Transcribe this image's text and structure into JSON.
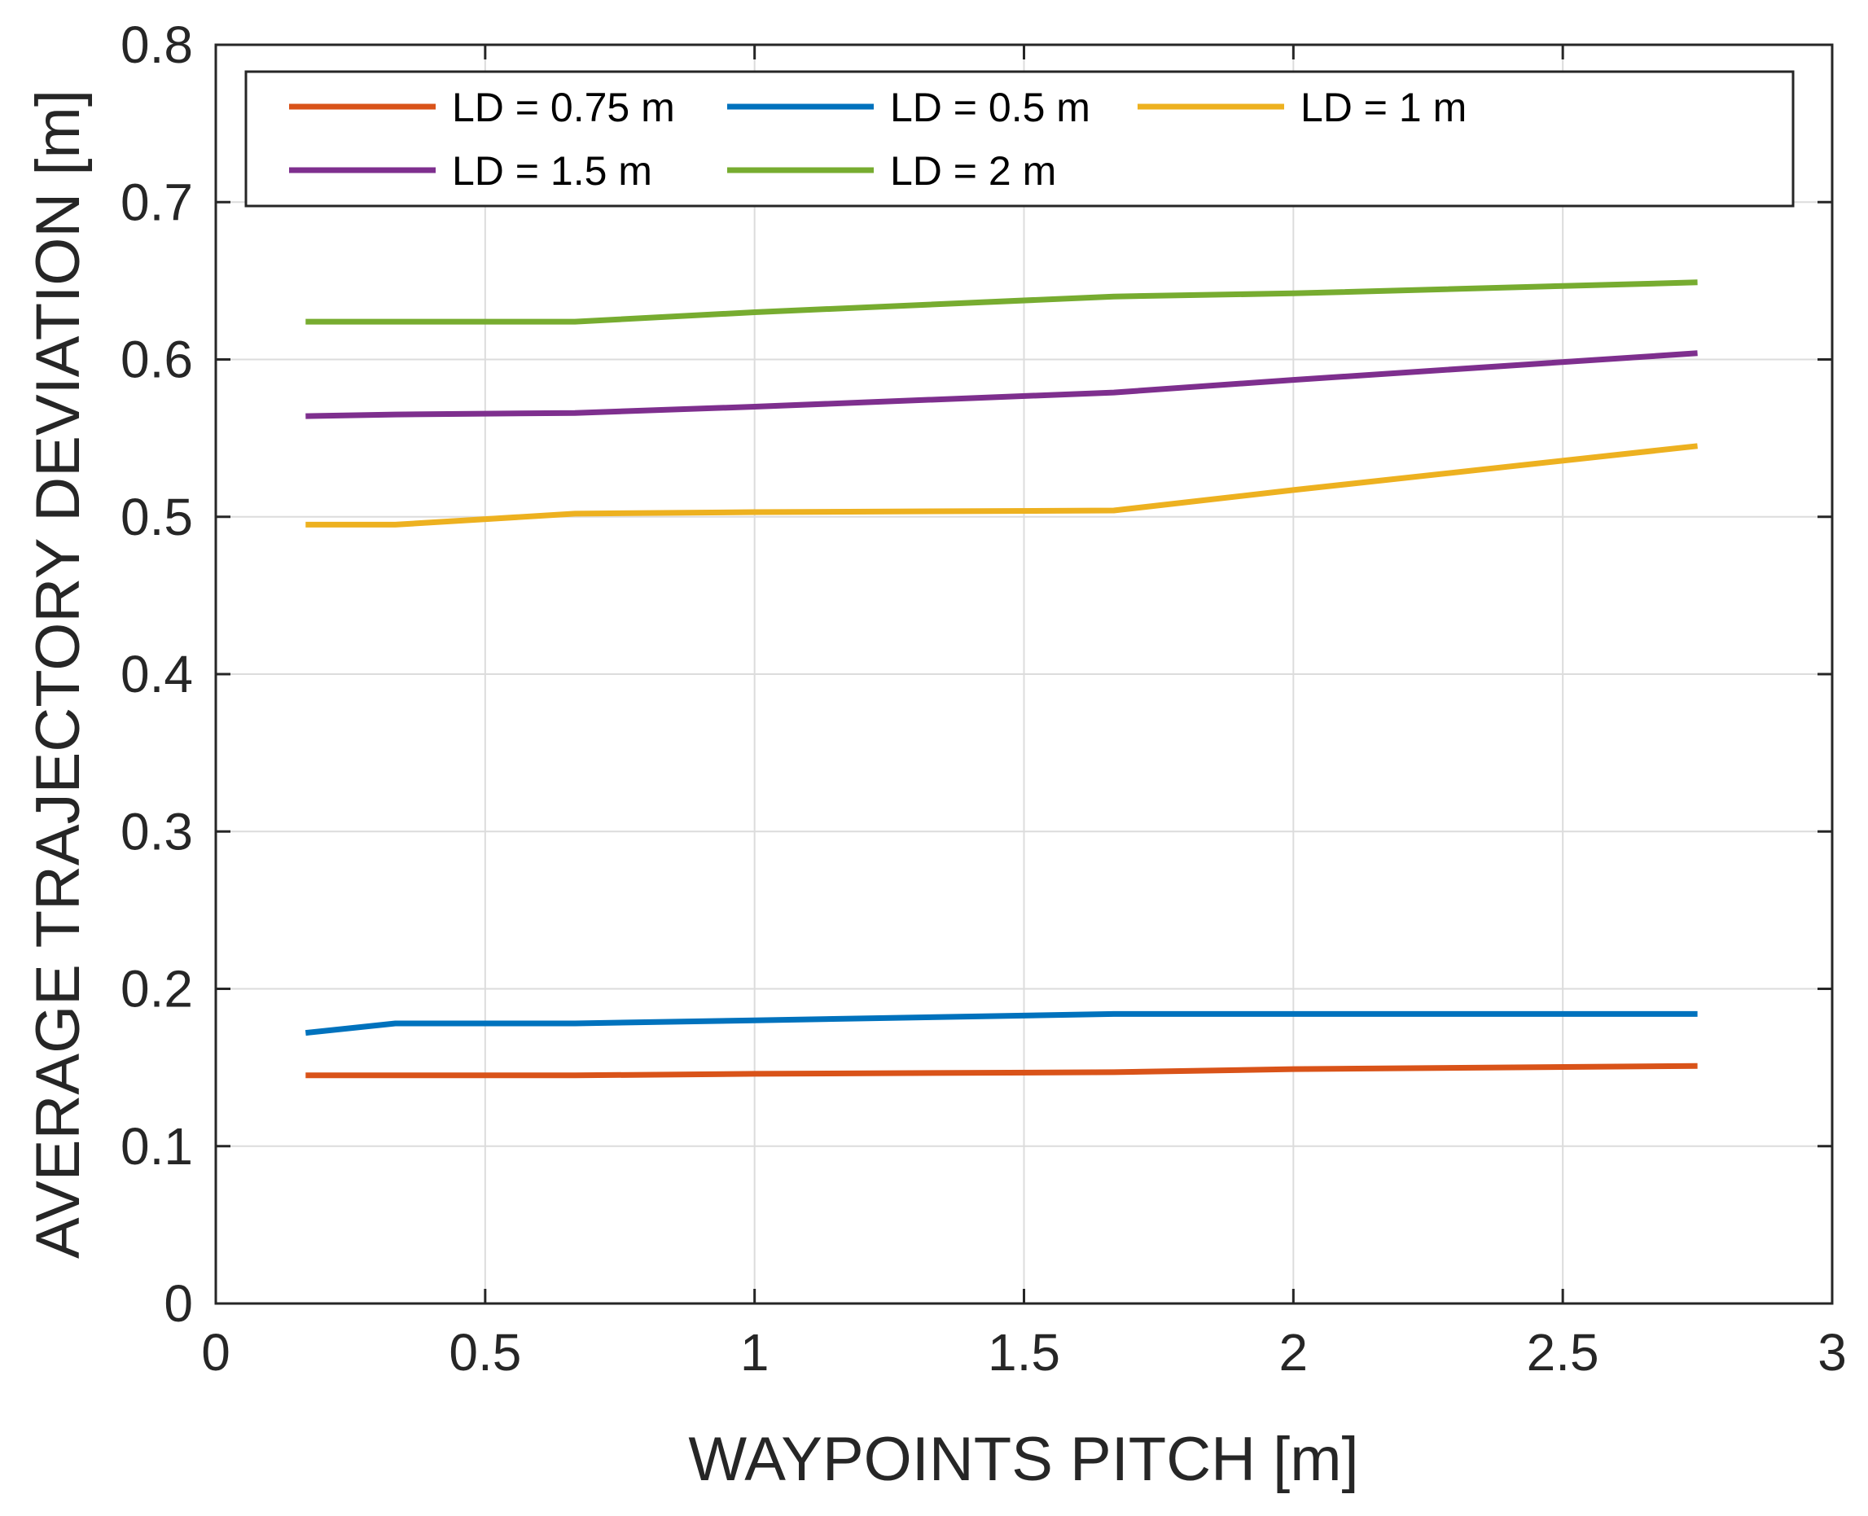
{
  "chart_data": {
    "type": "line",
    "title": "",
    "xlabel": "WAYPOINTS PITCH [m]",
    "ylabel": "AVERAGE TRAJECTORY DEVIATION [m]",
    "xlim": [
      0,
      3
    ],
    "ylim": [
      0,
      0.8
    ],
    "xticks": [
      0,
      0.5,
      1,
      1.5,
      2,
      2.5,
      3
    ],
    "yticks": [
      0,
      0.1,
      0.2,
      0.3,
      0.4,
      0.5,
      0.6,
      0.7,
      0.8
    ],
    "xtick_labels": [
      "0",
      "0.5",
      "1",
      "1.5",
      "2",
      "2.5",
      "3"
    ],
    "ytick_labels": [
      "0",
      "0.1",
      "0.2",
      "0.3",
      "0.4",
      "0.5",
      "0.6",
      "0.7",
      "0.8"
    ],
    "grid": true,
    "legend_position": "top",
    "x": [
      0.1667,
      0.3333,
      0.6667,
      1.0,
      1.6667,
      2.0,
      2.75
    ],
    "series": [
      {
        "name": "LD = 0.75 m",
        "color": "#D95319",
        "values": [
          0.145,
          0.145,
          0.145,
          0.146,
          0.147,
          0.149,
          0.151
        ]
      },
      {
        "name": "LD = 0.5 m",
        "color": "#0072BD",
        "values": [
          0.172,
          0.178,
          0.178,
          0.18,
          0.184,
          0.184,
          0.184
        ]
      },
      {
        "name": "LD = 1 m",
        "color": "#EDB120",
        "values": [
          0.495,
          0.495,
          0.502,
          0.503,
          0.504,
          0.517,
          0.545
        ]
      },
      {
        "name": "LD = 1.5 m",
        "color": "#7E2F8E",
        "values": [
          0.564,
          0.565,
          0.566,
          0.57,
          0.579,
          0.587,
          0.604
        ]
      },
      {
        "name": "LD = 2 m",
        "color": "#77AC30",
        "values": [
          0.624,
          0.624,
          0.624,
          0.63,
          0.64,
          0.642,
          0.649
        ]
      }
    ]
  }
}
